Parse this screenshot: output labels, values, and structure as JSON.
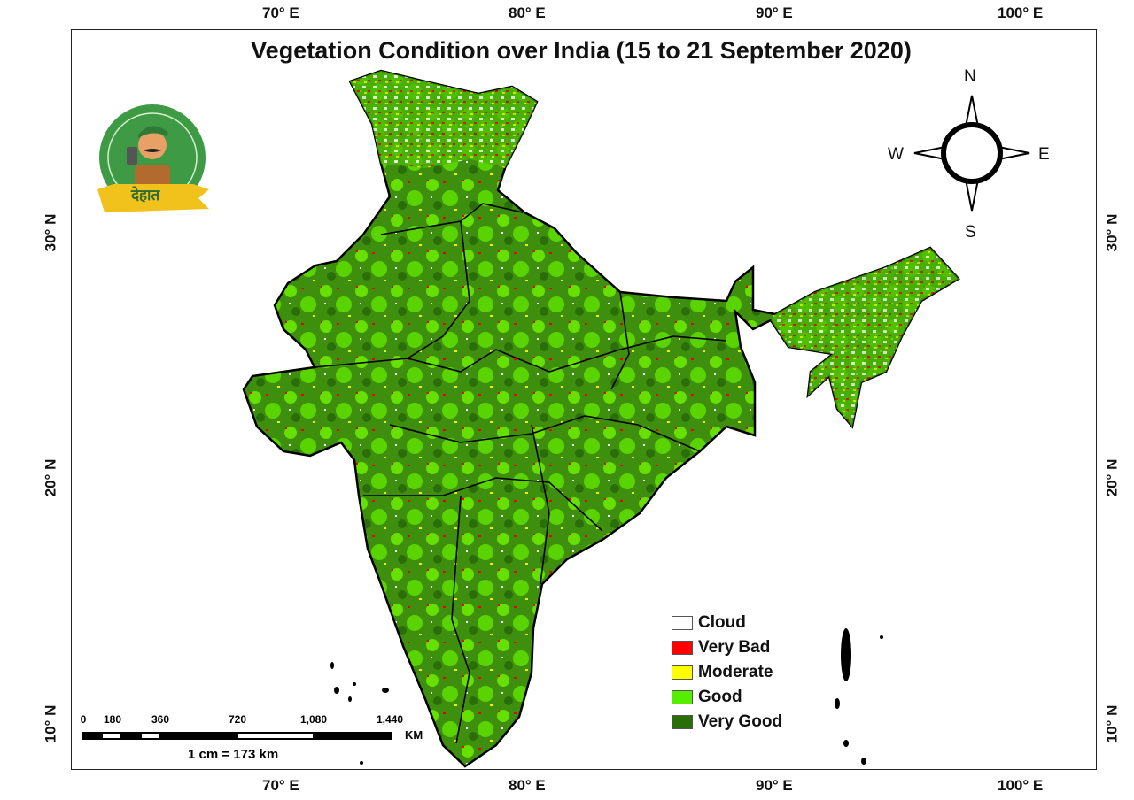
{
  "title": "Vegetation Condition over India (15 to 21 September 2020)",
  "axes": {
    "longitude_ticks": [
      "70° E",
      "80° E",
      "90° E",
      "100° E"
    ],
    "latitude_ticks": [
      "30° N",
      "20° N",
      "10° N"
    ]
  },
  "compass": {
    "n": "N",
    "s": "S",
    "e": "E",
    "w": "W"
  },
  "legend": [
    {
      "label": "Cloud",
      "color": "#ffffff"
    },
    {
      "label": "Very Bad",
      "color": "#ff0000"
    },
    {
      "label": "Moderate",
      "color": "#ffff00"
    },
    {
      "label": "Good",
      "color": "#55ee00"
    },
    {
      "label": "Very Good",
      "color": "#2a6e0a"
    }
  ],
  "scale_bar": {
    "labels": [
      "0",
      "180",
      "360",
      "720",
      "1,080",
      "1,440"
    ],
    "unit": "KM",
    "ratio": "1 cm = 173 km"
  },
  "logo": {
    "text": "देहात"
  }
}
